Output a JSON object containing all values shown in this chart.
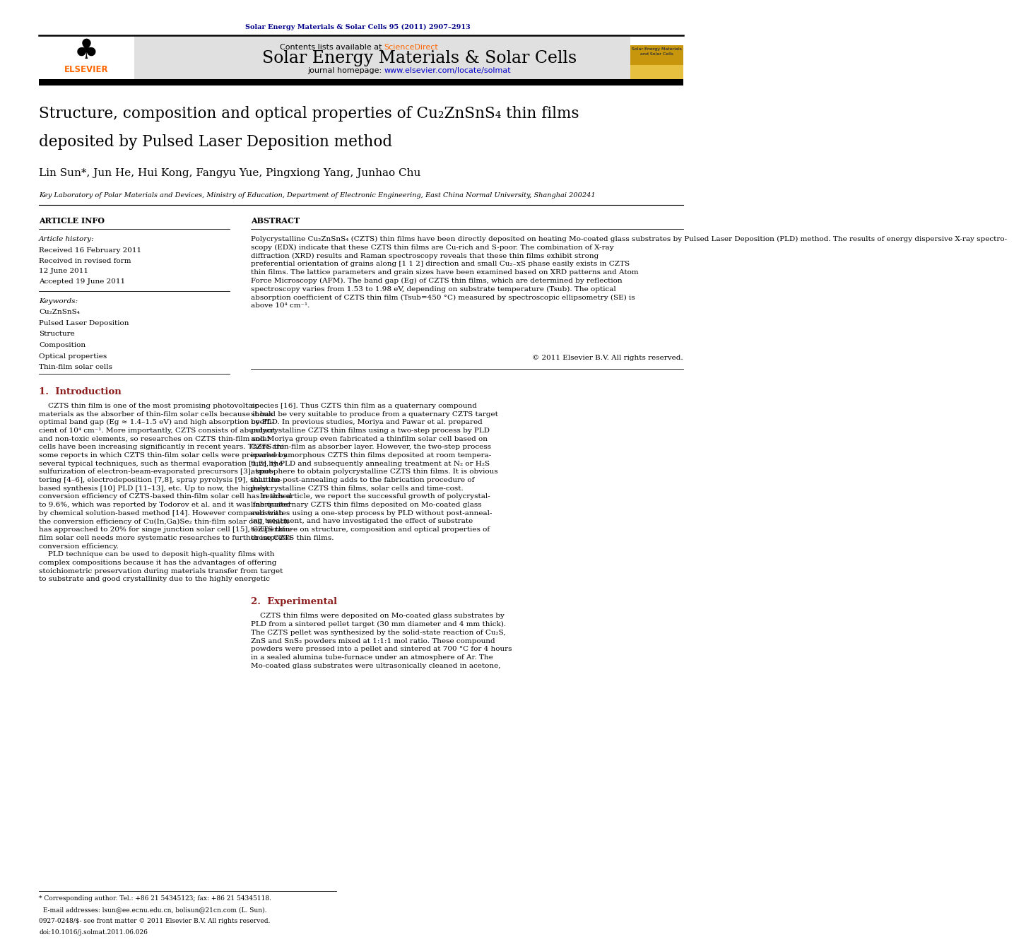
{
  "page_width": 9.92,
  "page_height": 13.23,
  "bg_color": "#ffffff",
  "journal_ref": "Solar Energy Materials & Solar Cells 95 (2011) 2907–2913",
  "journal_ref_color": "#00008B",
  "header_bg": "#e0e0e0",
  "header_title": "Solar Energy Materials & Solar Cells",
  "sciencedirect_color": "#FF6600",
  "url_color": "#0000CC",
  "elsevier_color": "#FF6600",
  "authors": "Lin Sun*, Jun He, Hui Kong, Fangyu Yue, Pingxiong Yang, Junhao Chu",
  "affiliation": "Key Laboratory of Polar Materials and Devices, Ministry of Education, Department of Electronic Engineering, East China Normal University, Shanghai 200241",
  "article_info_header": "ARTICLE INFO",
  "abstract_header": "ABSTRACT",
  "article_history_label": "Article history:",
  "received": "Received 16 February 2011",
  "revised_label": "Received in revised form",
  "revised_date": "12 June 2011",
  "accepted": "Accepted 19 June 2011",
  "keywords_label": "Keywords:",
  "keywords": [
    "Cu₂ZnSnS₄",
    "Pulsed Laser Deposition",
    "Structure",
    "Composition",
    "Optical properties",
    "Thin-film solar cells"
  ],
  "abstract_text": "Polycrystalline Cu₂ZnSnS₄ (CZTS) thin films have been directly deposited on heating Mo-coated glass substrates by Pulsed Laser Deposition (PLD) method. The results of energy dispersive X-ray spectro-\nscopy (EDX) indicate that these CZTS thin films are Cu-rich and S-poor. The combination of X-ray\ndiffraction (XRD) results and Raman spectroscopy reveals that these thin films exhibit strong\npreferential orientation of grains along [1 1 2] direction and small Cu₂₋xS phase easily exists in CZTS\nthin films. The lattice parameters and grain sizes have been examined based on XRD patterns and Atom\nForce Microscopy (AFM). The band gap (Eg) of CZTS thin films, which are determined by reflection\nspectroscopy varies from 1.53 to 1.98 eV, depending on substrate temperature (Tsub). The optical\nabsorption coefficient of CZTS thin film (Tsub=450 °C) measured by spectroscopic ellipsometry (SE) is\nabove 10⁴ cm⁻¹.",
  "copyright_text": "© 2011 Elsevier B.V. All rights reserved.",
  "intro_heading": "1.  Introduction",
  "intro_col1_lines": [
    "    CZTS thin film is one of the most promising photovoltaic",
    "materials as the absorber of thin-film solar cells because it has",
    "optimal band gap (Eg ≈ 1.4–1.5 eV) and high absorption coeffi-",
    "cient of 10⁴ cm⁻¹. More importantly, CZTS consists of abundant",
    "and non-toxic elements, so researches on CZTS thin-film solar",
    "cells have been increasing significantly in recent years. There are",
    "some reports in which CZTS thin-film solar cells were prepared by",
    "several typical techniques, such as thermal evaporation [1,2], the",
    "sulfurization of electron-beam-evaporated precursors [3], sput-",
    "tering [4–6], electrodeposition [7,8], spray pyrolysis [9], solution-",
    "based synthesis [10] PLD [11–13], etc. Up to now, the highest",
    "conversion efficiency of CZTS-based thin-film solar cell has reached",
    "to 9.6%, which was reported by Todorov et al. and it was fabricated",
    "by chemical solution-based method [14]. However compared with",
    "the conversion efficiency of Cu(In,Ga)Se₂ thin-film solar cell, which",
    "has approached to 20% for singe junction solar cell [15], CZTS thin-",
    "film solar cell needs more systematic researches to further improve",
    "conversion efficiency.",
    "    PLD technique can be used to deposit high-quality films with",
    "complex compositions because it has the advantages of offering",
    "stoichiometric preservation during materials transfer from target",
    "to substrate and good crystallinity due to the highly energetic"
  ],
  "intro_col2_lines": [
    "species [16]. Thus CZTS thin film as a quaternary compound",
    "should be very suitable to produce from a quaternary CZTS target",
    "by PLD. In previous studies, Moriya and Pawar et al. prepared",
    "polycrystalline CZTS thin films using a two-step process by PLD",
    "and Moriya group even fabricated a thinfilm solar cell based on",
    "CZTS thin-film as absorber layer. However, the two-step process",
    "involves amorphous CZTS thin films deposited at room tempera-",
    "ture by PLD and subsequently annealing treatment at N₂ or H₂S",
    "atmosphere to obtain polycrystalline CZTS thin films. It is obvious",
    "that the post-annealing adds to the fabrication procedure of",
    "polycrystalline CZTS thin films, solar cells and time-cost.",
    "    In this article, we report the successful growth of polycrystal-",
    "line quaternary CZTS thin films deposited on Mo-coated glass",
    "substrates using a one-step process by PLD without post-anneal-",
    "ing treatment, and have investigated the effect of substrate",
    "temperature on structure, composition and optical properties of",
    "these CZTS thin films."
  ],
  "exp_heading": "2.  Experimental",
  "exp_col2_lines": [
    "    CZTS thin films were deposited on Mo-coated glass substrates by",
    "PLD from a sintered pellet target (30 mm diameter and 4 mm thick).",
    "The CZTS pellet was synthesized by the solid-state reaction of Cu₂S,",
    "ZnS and SnS₂ powders mixed at 1:1:1 mol ratio. These compound",
    "powders were pressed into a pellet and sintered at 700 °C for 4 hours",
    "in a sealed alumina tube-furnace under an atmosphere of Ar. The",
    "Mo-coated glass substrates were ultrasonically cleaned in acetone,"
  ],
  "footnote1": "* Corresponding author. Tel.: +86 21 54345123; fax: +86 21 54345118.",
  "footnote2": "  E-mail addresses: lsun@ee.ecnu.edu.cn, bolisun@21cn.com (L. Sun).",
  "issn_line": "0927-0248/$- see front matter © 2011 Elsevier B.V. All rights reserved.",
  "doi_line": "doi:10.1016/j.solmat.2011.06.026",
  "heading_color": "#8B1A1A"
}
